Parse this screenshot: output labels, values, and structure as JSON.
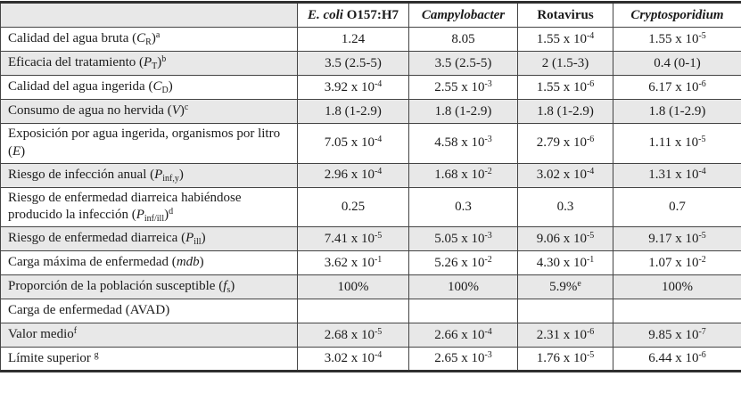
{
  "colors": {
    "row_shade": "#e8e8e8",
    "grid_line": "#444444",
    "outer_line": "#2f2f2f",
    "text": "#1b1b1b",
    "background": "#ffffff"
  },
  "table": {
    "header": [
      [],
      [
        {
          "bi": "E. coli"
        },
        {
          "b": " O157:H7"
        }
      ],
      [
        {
          "bi": "Campylobacter"
        }
      ],
      [
        {
          "b": "Rotavirus"
        }
      ],
      [
        {
          "bi": "Cryptosporidium"
        }
      ]
    ],
    "rows": [
      {
        "label": [
          {
            "t": "Calidad del agua bruta ("
          },
          {
            "i": "C"
          },
          {
            "sub": "R"
          },
          {
            "t": ")"
          },
          {
            "sup": "a"
          }
        ],
        "values": [
          [
            {
              "t": "1.24"
            }
          ],
          [
            {
              "t": "8.05"
            }
          ],
          [
            {
              "t": "1.55 x 10"
            },
            {
              "sup": "-4"
            }
          ],
          [
            {
              "t": "1.55 x 10"
            },
            {
              "sup": "-5"
            }
          ]
        ]
      },
      {
        "label": [
          {
            "t": "Eficacia del tratamiento ("
          },
          {
            "i": "P"
          },
          {
            "sub": "T"
          },
          {
            "t": ")"
          },
          {
            "sup": "b"
          }
        ],
        "values": [
          [
            {
              "t": "3.5 (2.5-5)"
            }
          ],
          [
            {
              "t": "3.5 (2.5-5)"
            }
          ],
          [
            {
              "t": "2 (1.5-3)"
            }
          ],
          [
            {
              "t": "0.4 (0-1)"
            }
          ]
        ]
      },
      {
        "label": [
          {
            "t": "Calidad del agua ingerida ("
          },
          {
            "i": "C"
          },
          {
            "sub": "D"
          },
          {
            "t": ")"
          }
        ],
        "values": [
          [
            {
              "t": "3.92 x 10"
            },
            {
              "sup": "-4"
            }
          ],
          [
            {
              "t": "2.55 x 10"
            },
            {
              "sup": "-3"
            }
          ],
          [
            {
              "t": "1.55 x 10"
            },
            {
              "sup": "-6"
            }
          ],
          [
            {
              "t": "6.17 x 10"
            },
            {
              "sup": "-6"
            }
          ]
        ]
      },
      {
        "label": [
          {
            "t": "Consumo de agua no hervida ("
          },
          {
            "i": "V"
          },
          {
            "t": ")"
          },
          {
            "sup": "c"
          }
        ],
        "values": [
          [
            {
              "t": "1.8 (1-2.9)"
            }
          ],
          [
            {
              "t": "1.8 (1-2.9)"
            }
          ],
          [
            {
              "t": "1.8 (1-2.9)"
            }
          ],
          [
            {
              "t": "1.8 (1-2.9)"
            }
          ]
        ]
      },
      {
        "label": [
          {
            "t": "Exposición por agua ingerida, organismos por litro ("
          },
          {
            "i": "E"
          },
          {
            "t": ")"
          }
        ],
        "values": [
          [
            {
              "t": "7.05 x 10"
            },
            {
              "sup": "-4"
            }
          ],
          [
            {
              "t": "4.58 x 10"
            },
            {
              "sup": "-3"
            }
          ],
          [
            {
              "t": "2.79 x 10"
            },
            {
              "sup": "-6"
            }
          ],
          [
            {
              "t": "1.11 x 10"
            },
            {
              "sup": "-5"
            }
          ]
        ]
      },
      {
        "label": [
          {
            "t": "Riesgo de infección anual ("
          },
          {
            "i": "P"
          },
          {
            "sub": "inf,y"
          },
          {
            "t": ")"
          }
        ],
        "values": [
          [
            {
              "t": "2.96 x 10"
            },
            {
              "sup": "-4"
            }
          ],
          [
            {
              "t": "1.68 x 10"
            },
            {
              "sup": "-2"
            }
          ],
          [
            {
              "t": "3.02 x 10"
            },
            {
              "sup": "-4"
            }
          ],
          [
            {
              "t": "1.31 x 10"
            },
            {
              "sup": "-4"
            }
          ]
        ]
      },
      {
        "label": [
          {
            "t": "Riesgo de enfermedad diarreica habiéndose producido la infección ("
          },
          {
            "i": "P"
          },
          {
            "sub": "inf/ill"
          },
          {
            "t": ")"
          },
          {
            "sup": "d"
          }
        ],
        "values": [
          [
            {
              "t": "0.25"
            }
          ],
          [
            {
              "t": "0.3"
            }
          ],
          [
            {
              "t": "0.3"
            }
          ],
          [
            {
              "t": "0.7"
            }
          ]
        ]
      },
      {
        "label": [
          {
            "t": "Riesgo de enfermedad diarreica ("
          },
          {
            "i": "P"
          },
          {
            "sub": "ill"
          },
          {
            "t": ")"
          }
        ],
        "values": [
          [
            {
              "t": "7.41 x 10"
            },
            {
              "sup": "-5"
            }
          ],
          [
            {
              "t": "5.05 x 10"
            },
            {
              "sup": "-3"
            }
          ],
          [
            {
              "t": "9.06 x 10"
            },
            {
              "sup": "-5"
            }
          ],
          [
            {
              "t": "9.17 x 10"
            },
            {
              "sup": "-5"
            }
          ]
        ]
      },
      {
        "label": [
          {
            "t": "Carga máxima de enfermedad ("
          },
          {
            "i": "mdb"
          },
          {
            "t": ")"
          }
        ],
        "values": [
          [
            {
              "t": "3.62 x 10"
            },
            {
              "sup": "-1"
            }
          ],
          [
            {
              "t": "5.26 x 10"
            },
            {
              "sup": "-2"
            }
          ],
          [
            {
              "t": "4.30 x 10"
            },
            {
              "sup": "-1"
            }
          ],
          [
            {
              "t": "1.07 x 10"
            },
            {
              "sup": "-2"
            }
          ]
        ]
      },
      {
        "label": [
          {
            "t": "Proporción de la población susceptible ("
          },
          {
            "i": "f"
          },
          {
            "sub": "s"
          },
          {
            "t": ")"
          }
        ],
        "values": [
          [
            {
              "t": "100%"
            }
          ],
          [
            {
              "t": "100%"
            }
          ],
          [
            {
              "t": "5.9%"
            },
            {
              "sup": "e"
            }
          ],
          [
            {
              "t": "100%"
            }
          ]
        ]
      },
      {
        "label": [
          {
            "t": "Carga de enfermedad (AVAD)"
          }
        ],
        "values": [
          [],
          [],
          [],
          []
        ]
      },
      {
        "label": [
          {
            "t": "Valor medio"
          },
          {
            "sup": "f"
          }
        ],
        "values": [
          [
            {
              "t": "2.68 x 10"
            },
            {
              "sup": "-5"
            }
          ],
          [
            {
              "t": "2.66 x 10"
            },
            {
              "sup": "-4"
            }
          ],
          [
            {
              "t": "2.31 x 10"
            },
            {
              "sup": "-6"
            }
          ],
          [
            {
              "t": "9.85 x 10"
            },
            {
              "sup": "-7"
            }
          ]
        ]
      },
      {
        "label": [
          {
            "t": "Límite superior "
          },
          {
            "sup": "g"
          }
        ],
        "values": [
          [
            {
              "t": "3.02 x 10"
            },
            {
              "sup": "-4"
            }
          ],
          [
            {
              "t": "2.65 x 10"
            },
            {
              "sup": "-3"
            }
          ],
          [
            {
              "t": "1.76 x 10"
            },
            {
              "sup": "-5"
            }
          ],
          [
            {
              "t": "6.44 x 10"
            },
            {
              "sup": "-6"
            }
          ]
        ]
      }
    ]
  }
}
